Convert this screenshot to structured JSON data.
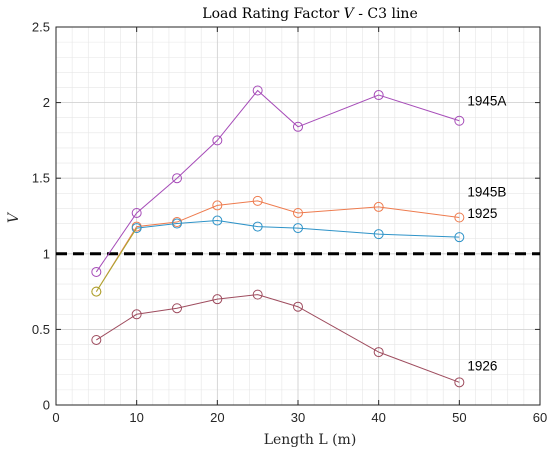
{
  "chart_data": {
    "type": "line",
    "title": "Load Rating Factor V - C3 line",
    "title_parts": {
      "prefix": "Load Rating Factor ",
      "var": "V",
      "suffix": " - C3 line"
    },
    "xlabel": "Length L (m)",
    "ylabel": "V",
    "xlim": [
      0,
      60
    ],
    "ylim": [
      0,
      2.5
    ],
    "xticks": [
      0,
      10,
      20,
      30,
      40,
      50,
      60
    ],
    "yticks": [
      0,
      0.5,
      1,
      1.5,
      2,
      2.5
    ],
    "xtick_labels": [
      "0",
      "10",
      "20",
      "30",
      "40",
      "50",
      "60"
    ],
    "ytick_labels": [
      "0",
      "0.5",
      "1",
      "1.5",
      "2",
      "2.5"
    ],
    "grid": true,
    "minor_grid": true,
    "reference_line": {
      "y": 1.0,
      "style": "dashed",
      "color": "#000000"
    },
    "series": [
      {
        "name": "1945A",
        "color": "#A64CB8",
        "x": [
          5,
          10,
          15,
          20,
          25,
          30,
          40,
          50
        ],
        "y": [
          0.88,
          1.27,
          1.5,
          1.75,
          2.08,
          1.84,
          2.05,
          1.88
        ]
      },
      {
        "name": "1945B",
        "color": "#EE7B4E",
        "x": [
          5,
          10,
          15,
          20,
          25,
          30,
          40,
          50
        ],
        "y": [
          0.75,
          1.18,
          1.21,
          1.32,
          1.35,
          1.27,
          1.31,
          1.24
        ]
      },
      {
        "name": "1925",
        "color": "#2E93C8",
        "x": [
          10,
          15,
          20,
          25,
          30,
          40,
          50
        ],
        "y": [
          1.17,
          1.2,
          1.22,
          1.18,
          1.17,
          1.13,
          1.11
        ]
      },
      {
        "name": "1926",
        "color": "#9E4C5E",
        "x": [
          5,
          10,
          15,
          20,
          25,
          30,
          40,
          50
        ],
        "y": [
          0.43,
          0.6,
          0.64,
          0.7,
          0.73,
          0.65,
          0.35,
          0.15
        ]
      }
    ],
    "extra_marker": {
      "x": 5,
      "y": 0.75,
      "color": "#A8A830"
    }
  }
}
